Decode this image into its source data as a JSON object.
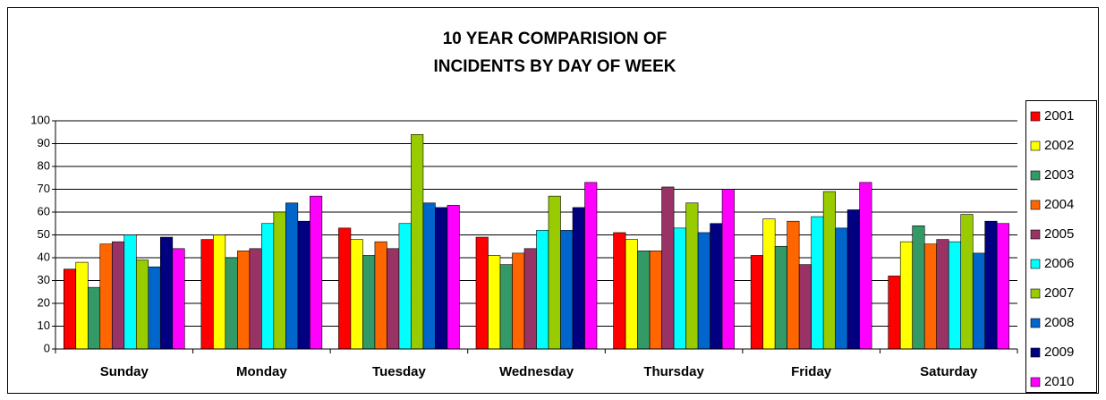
{
  "chart_data": {
    "type": "bar",
    "title": [
      "10 YEAR COMPARISION OF",
      "INCIDENTS BY DAY OF WEEK"
    ],
    "categories": [
      "Sunday",
      "Monday",
      "Tuesday",
      "Wednesday",
      "Thursday",
      "Friday",
      "Saturday"
    ],
    "series": [
      {
        "name": "2001",
        "color": "#ff0000",
        "values": [
          35,
          48,
          53,
          49,
          51,
          41,
          32
        ]
      },
      {
        "name": "2002",
        "color": "#ffff00",
        "values": [
          38,
          50,
          48,
          41,
          48,
          57,
          47
        ]
      },
      {
        "name": "2003",
        "color": "#339966",
        "values": [
          27,
          40,
          41,
          37,
          43,
          45,
          54
        ]
      },
      {
        "name": "2004",
        "color": "#ff6600",
        "values": [
          46,
          43,
          47,
          42,
          43,
          56,
          46
        ]
      },
      {
        "name": "2005",
        "color": "#993366",
        "values": [
          47,
          44,
          44,
          44,
          71,
          37,
          48
        ]
      },
      {
        "name": "2006",
        "color": "#00ffff",
        "values": [
          50,
          55,
          55,
          52,
          53,
          58,
          47
        ]
      },
      {
        "name": "2007",
        "color": "#99cc00",
        "values": [
          39,
          60,
          94,
          67,
          64,
          69,
          59
        ]
      },
      {
        "name": "2008",
        "color": "#0066cc",
        "values": [
          36,
          64,
          64,
          52,
          51,
          53,
          42
        ]
      },
      {
        "name": "2009",
        "color": "#000080",
        "values": [
          49,
          56,
          62,
          62,
          55,
          61,
          56
        ]
      },
      {
        "name": "2010",
        "color": "#ff00ff",
        "values": [
          44,
          67,
          63,
          73,
          70,
          73,
          55
        ]
      }
    ],
    "ylim": [
      0,
      100
    ],
    "yticks": [
      0,
      10,
      20,
      30,
      40,
      50,
      60,
      70,
      80,
      90,
      100
    ],
    "grid": true,
    "legend": "right"
  }
}
